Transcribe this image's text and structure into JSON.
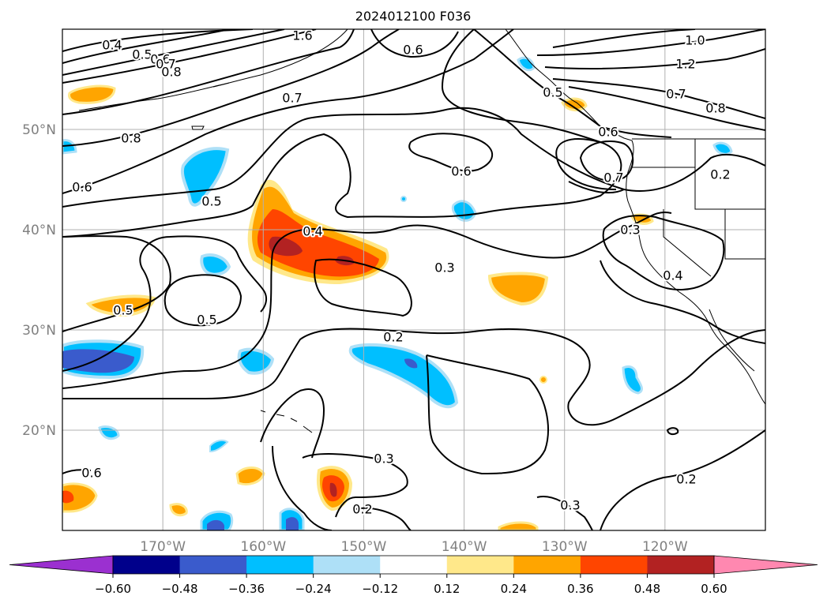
{
  "title": "2024012100 F036",
  "map": {
    "lon_range": [
      -180,
      -110
    ],
    "lat_range": [
      10,
      60
    ],
    "grid": true,
    "lon_ticks": [
      {
        "lon": -170,
        "label": "170°W"
      },
      {
        "lon": -160,
        "label": "160°W"
      },
      {
        "lon": -150,
        "label": "150°W"
      },
      {
        "lon": -140,
        "label": "140°W"
      },
      {
        "lon": -130,
        "label": "130°W"
      },
      {
        "lon": -120,
        "label": "120°W"
      }
    ],
    "lat_ticks": [
      {
        "lat": 20,
        "label": "20°N"
      },
      {
        "lat": 30,
        "label": "30°N"
      },
      {
        "lat": 40,
        "label": "40°N"
      },
      {
        "lat": 50,
        "label": "50°N"
      }
    ],
    "contour_labels": [
      "0.4",
      "0.5",
      "0.6",
      "0.7",
      "0.8",
      "1.0",
      "1.2",
      "0.7",
      "0.8",
      "0.6",
      "0.7",
      "0.6",
      "0.8",
      "0.6",
      "0.5",
      "0.4",
      "0.7",
      "0.6",
      "0.3",
      "0.3",
      "0.5",
      "0.5",
      "0.2",
      "0.2",
      "0.3",
      "0.2",
      "0.3",
      "0.2",
      "0.4",
      "0.6",
      "1.6",
      "0.5"
    ]
  },
  "colorbar": {
    "ticks": [
      "−0.60",
      "−0.48",
      "−0.36",
      "−0.24",
      "−0.12",
      "0.12",
      "0.24",
      "0.36",
      "0.48",
      "0.60"
    ],
    "levels": [
      -0.6,
      -0.48,
      -0.36,
      -0.24,
      -0.12,
      0.12,
      0.24,
      0.36,
      0.48,
      0.6
    ],
    "colors": [
      "#9b30d0",
      "#00008b",
      "#3a5bcc",
      "#00bfff",
      "#aee0f7",
      "#ffffff",
      "#ffe88a",
      "#ffa500",
      "#ff4500",
      "#b22222",
      "#ff88b0"
    ],
    "extend": "both"
  }
}
